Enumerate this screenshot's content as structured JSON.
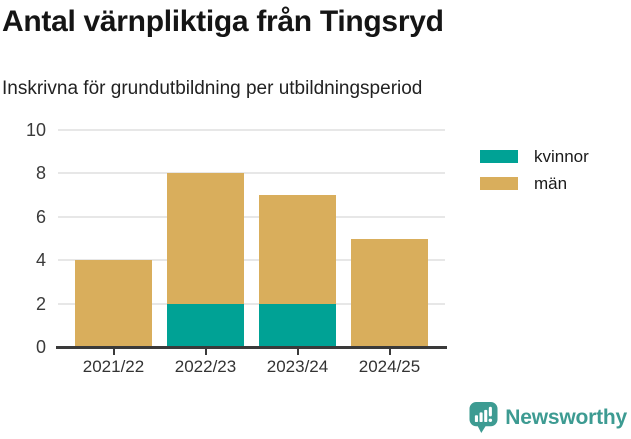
{
  "chart_data": {
    "type": "bar",
    "stacked": true,
    "title": "Antal värnpliktiga från Tingsryd",
    "subtitle": "Inskrivna för grundutbildning per utbildningsperiod",
    "categories": [
      "2021/22",
      "2022/23",
      "2023/24",
      "2024/25"
    ],
    "series": [
      {
        "name": "kvinnor",
        "color": "#00A295",
        "values": [
          0,
          2,
          2,
          0
        ]
      },
      {
        "name": "män",
        "color": "#D9AE5C",
        "values": [
          4,
          6,
          5,
          5
        ]
      }
    ],
    "totals": [
      4,
      8,
      7,
      5
    ],
    "ylim": [
      0,
      10
    ],
    "yticks": [
      0,
      2,
      4,
      6,
      8,
      10
    ],
    "xlabel": "",
    "ylabel": "",
    "grid": true,
    "legend_position": "top-right",
    "axis_color": "#3a3a3a",
    "gridline_color": "#e7e7e7",
    "tick_label_color": "#333333"
  },
  "branding": {
    "logo_text": "Newsworthy",
    "logo_color": "#3D9B92",
    "logo_icon": "bar-chart-speech-bubble-icon"
  }
}
